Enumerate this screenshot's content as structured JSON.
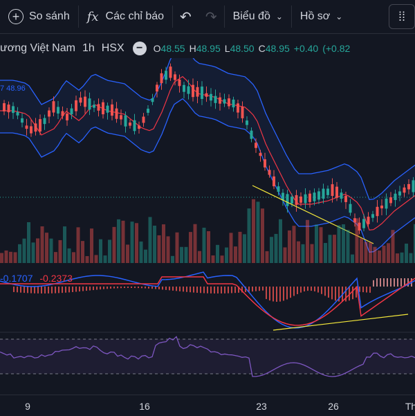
{
  "toolbar": {
    "compare_label": "So sánh",
    "compare_icon": "plus-circle-icon",
    "indicators_label": "Các chỉ báo",
    "indicators_icon": "fx-icon",
    "undo_icon": "undo-icon",
    "redo_icon": "redo-icon",
    "chart_label": "Biểu đồ",
    "profile_label": "Hồ sơ",
    "grip_icon": "drag-handle-icon"
  },
  "legend": {
    "symbol": "ương Việt Nam",
    "interval": "1h",
    "exchange": "HSX",
    "open_key": "O",
    "open": "48.55",
    "high_key": "H",
    "high": "48.95",
    "low_key": "L",
    "low": "48.50",
    "close_key": "C",
    "close": "48.95",
    "change": "+0.40",
    "change_pct": "(+0.82"
  },
  "bb_label": "7 48.96",
  "macd": {
    "value1": "-0.1707",
    "value2": "-0.2373"
  },
  "xaxis": {
    "ticks": [
      "9",
      "16",
      "23",
      "26",
      "Th"
    ]
  },
  "colors": {
    "bg": "#131722",
    "up": "#26a69a",
    "down": "#ef5350",
    "bb": "#2962ff",
    "basis": "#f23645",
    "trend": "#f5e93b",
    "rsi": "#7e57c2"
  }
}
